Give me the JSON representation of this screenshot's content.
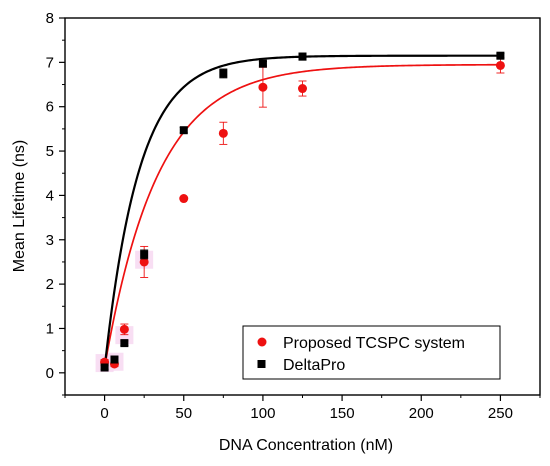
{
  "chart_data": {
    "type": "scatter",
    "xlabel": "DNA Concentration (nM)",
    "ylabel": "Mean Lifetime (ns)",
    "xlim": [
      -25,
      275
    ],
    "ylim": [
      -0.5,
      8
    ],
    "xticks": [
      0,
      50,
      100,
      150,
      200,
      250
    ],
    "yticks": [
      0,
      1,
      2,
      3,
      4,
      5,
      6,
      7,
      8
    ],
    "grid": false,
    "legend_position": "bottom-right",
    "series": [
      {
        "name": "Proposed TCSPC system",
        "marker": "circle",
        "color": "#ee1111",
        "points": [
          {
            "x": 0,
            "y": 0.24,
            "err": 0.06
          },
          {
            "x": 6.25,
            "y": 0.2,
            "err": 0.06
          },
          {
            "x": 12.5,
            "y": 0.98,
            "err": 0.12
          },
          {
            "x": 25,
            "y": 2.5,
            "err": 0.35
          },
          {
            "x": 50,
            "y": 3.93,
            "err": 0.0
          },
          {
            "x": 75,
            "y": 5.4,
            "err": 0.25
          },
          {
            "x": 100,
            "y": 6.44,
            "err": 0.45
          },
          {
            "x": 125,
            "y": 6.41,
            "err": 0.17
          },
          {
            "x": 250,
            "y": 6.93,
            "err": 0.17
          }
        ],
        "fit_color": "#ee1111",
        "fit": {
          "plateau": 6.95,
          "k": 0.03,
          "x0": -0.6
        }
      },
      {
        "name": "DeltaPro",
        "marker": "square",
        "color": "#000000",
        "points": [
          {
            "x": 0,
            "y": 0.12,
            "err": 0.04
          },
          {
            "x": 6.25,
            "y": 0.3,
            "err": 0.05
          },
          {
            "x": 12.5,
            "y": 0.67,
            "err": 0.05
          },
          {
            "x": 25,
            "y": 2.67,
            "err": 0.1
          },
          {
            "x": 50,
            "y": 5.47,
            "err": 0.06
          },
          {
            "x": 75,
            "y": 6.75,
            "err": 0.1
          },
          {
            "x": 100,
            "y": 6.97,
            "err": 0.05
          },
          {
            "x": 125,
            "y": 7.13,
            "err": 0.08
          },
          {
            "x": 250,
            "y": 7.15,
            "err": 0.05
          }
        ],
        "fit_color": "#000000",
        "fit": {
          "plateau": 7.15,
          "k": 0.046,
          "x0": -0.3
        }
      }
    ]
  }
}
